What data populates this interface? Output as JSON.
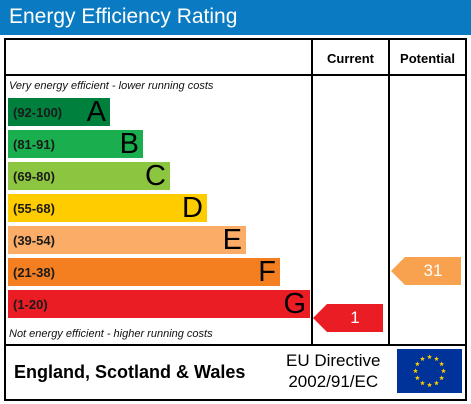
{
  "title": "Energy Efficiency Rating",
  "columns": {
    "current": "Current",
    "potential": "Potential"
  },
  "top_note": "Very energy efficient - lower running costs",
  "bottom_note": "Not energy efficient - higher running costs",
  "bands": [
    {
      "range": "(92-100)",
      "letter": "A",
      "color": "#00803d"
    },
    {
      "range": "(81-91)",
      "letter": "B",
      "color": "#1aae4e"
    },
    {
      "range": "(69-80)",
      "letter": "C",
      "color": "#8cc540"
    },
    {
      "range": "(55-68)",
      "letter": "D",
      "color": "#ffcc00"
    },
    {
      "range": "(39-54)",
      "letter": "E",
      "color": "#fbad67"
    },
    {
      "range": "(21-38)",
      "letter": "F",
      "color": "#f37f20"
    },
    {
      "range": "(1-20)",
      "letter": "G",
      "color": "#ea1c24"
    }
  ],
  "current": {
    "value": "1",
    "band": "G",
    "color": "#ea1c24"
  },
  "potential": {
    "value": "31",
    "band": "F",
    "color": "#f8a14f"
  },
  "footer": {
    "region": "England, Scotland & Wales",
    "directive_line1": "EU Directive",
    "directive_line2": "2002/91/EC"
  },
  "flag_icon": "eu-flag-icon",
  "colors": {
    "title_bar": "#0a7bc2",
    "flag_blue": "#003399",
    "flag_star": "#ffcc00"
  }
}
